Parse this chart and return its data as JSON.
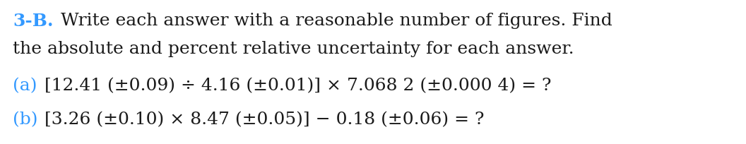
{
  "background_color": "#ffffff",
  "figsize": [
    10.56,
    2.04
  ],
  "dpi": 100,
  "header_label": "3-B.",
  "header_color": "#3399ff",
  "header_text_line1": " Write each answer with a reasonable number of figures. Find",
  "header_text_line2": "the absolute and percent relative uncertainty for each answer.",
  "header_text_color": "#1a1a1a",
  "line_a_label": "(a)",
  "line_a_color": "#3399ff",
  "line_a_text": " [12.41 (±0.09) ÷ 4.16 (±0.01)] × 7.068 2 (±0.000 4) = ?",
  "line_b_label": "(b)",
  "line_b_color": "#3399ff",
  "line_b_text": " [3.26 (±0.10) × 8.47 (±0.05)] − 0.18 (±0.06) = ?",
  "font_size_header_bold": 18,
  "font_size_header": 18,
  "font_size_body": 18,
  "text_color": "#1a1a1a"
}
